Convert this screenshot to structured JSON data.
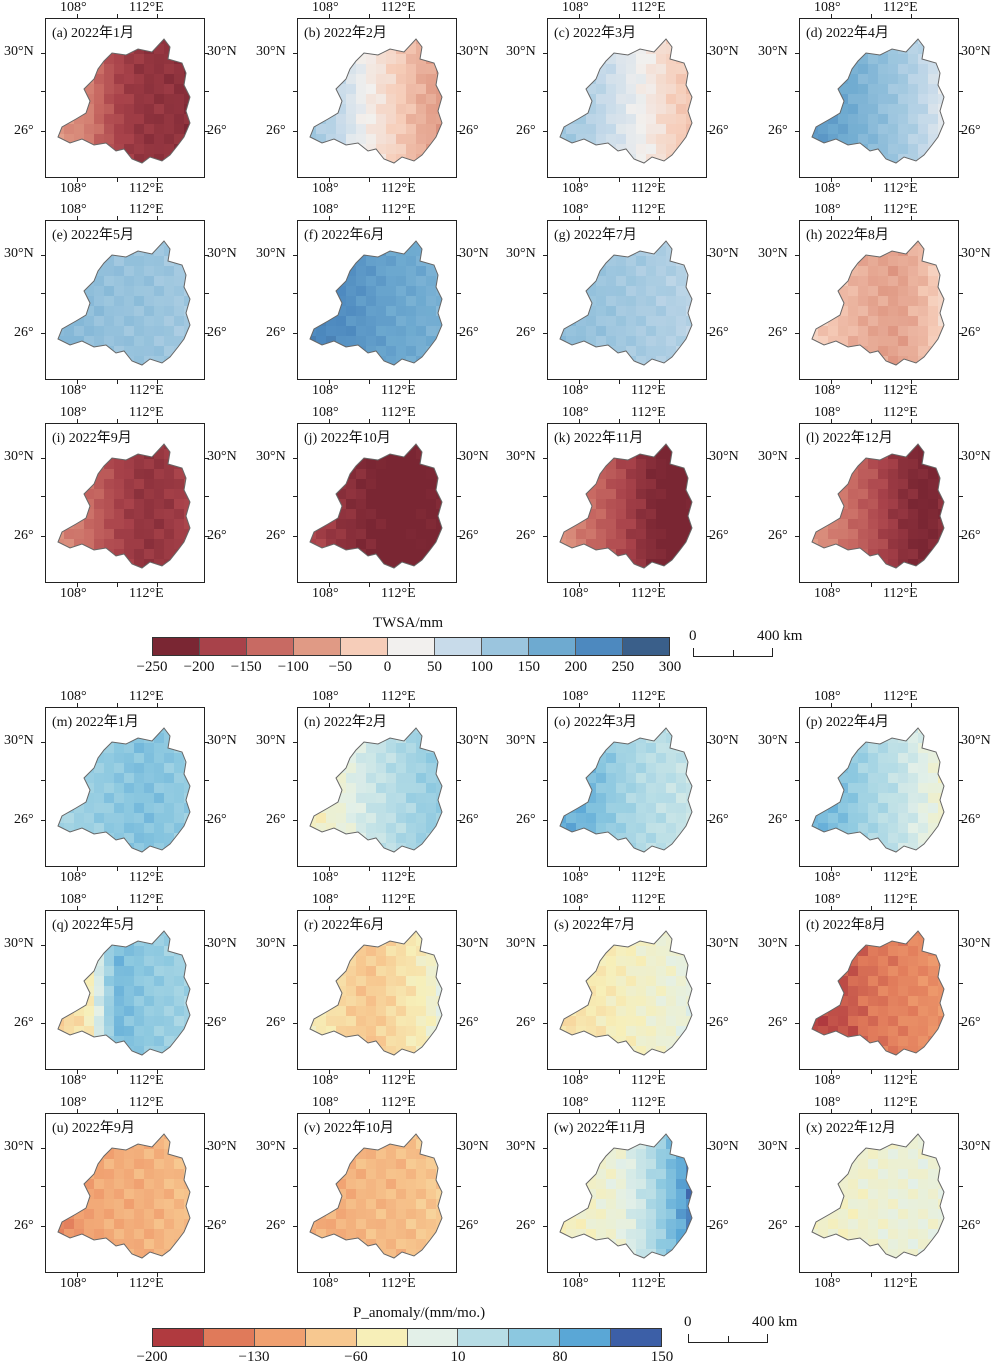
{
  "ticks": {
    "lon_left": "108°",
    "lon_right": "112°E",
    "lat_top": "30°N",
    "lat_bottom": "26°"
  },
  "twsa_panels": [
    {
      "label": "(a) 2022年1月",
      "values": [
        -80,
        -100,
        -170,
        -200,
        -200,
        -220
      ]
    },
    {
      "label": "(b) 2022年2月",
      "values": [
        120,
        80,
        20,
        -20,
        -60,
        -80
      ]
    },
    {
      "label": "(c) 2022年3月",
      "values": [
        120,
        100,
        60,
        20,
        -20,
        -40
      ]
    },
    {
      "label": "(d) 2022年4月",
      "values": [
        200,
        180,
        150,
        120,
        80,
        20
      ]
    },
    {
      "label": "(e) 2022年5月",
      "values": [
        150,
        140,
        130,
        130,
        120,
        110
      ]
    },
    {
      "label": "(f) 2022年6月",
      "values": [
        230,
        220,
        200,
        180,
        170,
        150
      ]
    },
    {
      "label": "(g) 2022年7月",
      "values": [
        140,
        130,
        120,
        110,
        100,
        80
      ]
    },
    {
      "label": "(h) 2022年8月",
      "values": [
        -20,
        -40,
        -60,
        -70,
        -40,
        10
      ]
    },
    {
      "label": "(i) 2022年9月",
      "values": [
        -90,
        -120,
        -170,
        -200,
        -190,
        -160
      ]
    },
    {
      "label": "(j) 2022年10月",
      "values": [
        -170,
        -200,
        -220,
        -240,
        -230,
        -220
      ]
    },
    {
      "label": "(k) 2022年11月",
      "values": [
        -80,
        -120,
        -160,
        -210,
        -240,
        -230
      ]
    },
    {
      "label": "(l) 2022年12月",
      "values": [
        -80,
        -110,
        -150,
        -200,
        -230,
        -200
      ]
    }
  ],
  "twsa_colorbar": {
    "title": "TWSA/mm",
    "labels": [
      "−250",
      "−200",
      "−150",
      "−100",
      "−50",
      "0",
      "50",
      "100",
      "150",
      "200",
      "250",
      "300"
    ],
    "colors": [
      "#7a2633",
      "#a8424a",
      "#c86a63",
      "#e09a85",
      "#f6cdb9",
      "#f2f0ee",
      "#c8dbea",
      "#9bc5de",
      "#6eaad0",
      "#4d89bf",
      "#3a5f8a"
    ]
  },
  "panom_panels": [
    {
      "label": "(m) 2022年1月",
      "values": [
        40,
        50,
        60,
        70,
        60,
        50
      ]
    },
    {
      "label": "(n) 2022年2月",
      "values": [
        -40,
        -20,
        10,
        30,
        50,
        60
      ]
    },
    {
      "label": "(o) 2022年3月",
      "values": [
        90,
        80,
        50,
        30,
        20,
        10
      ]
    },
    {
      "label": "(p) 2022年4月",
      "values": [
        80,
        70,
        40,
        20,
        -10,
        -40
      ]
    },
    {
      "label": "(q) 2022年5月",
      "values": [
        -70,
        -50,
        80,
        60,
        50,
        40
      ]
    },
    {
      "label": "(r) 2022年6月",
      "values": [
        -40,
        -60,
        -80,
        -60,
        -40,
        0
      ]
    },
    {
      "label": "(s) 2022年7月",
      "values": [
        -60,
        -50,
        -40,
        -30,
        -20,
        -10
      ]
    },
    {
      "label": "(t) 2022年8月",
      "values": [
        -180,
        -170,
        -150,
        -140,
        -130,
        -120
      ]
    },
    {
      "label": "(u) 2022年9月",
      "values": [
        -140,
        -110,
        -100,
        -100,
        -90,
        -80
      ]
    },
    {
      "label": "(v) 2022年10月",
      "values": [
        -100,
        -100,
        -90,
        -90,
        -80,
        -70
      ]
    },
    {
      "label": "(w) 2022年11月",
      "values": [
        -40,
        -30,
        -20,
        20,
        80,
        140
      ]
    },
    {
      "label": "(x) 2022年12月",
      "values": [
        -30,
        -30,
        -25,
        -20,
        -20,
        -20
      ]
    }
  ],
  "panom_colorbar": {
    "title": "P_anomaly/(mm/mo.)",
    "labels": [
      "−200",
      "−130",
      "−60",
      "10",
      "80",
      "150"
    ],
    "colors": [
      "#b03a3f",
      "#e07a5a",
      "#f0a070",
      "#f7c890",
      "#f7efb8",
      "#e3f0e8",
      "#b7dde6",
      "#8cc8e0",
      "#5aa7d6",
      "#3c5fa7"
    ]
  },
  "scalebar": {
    "zero": "0",
    "distance": "400 km"
  }
}
